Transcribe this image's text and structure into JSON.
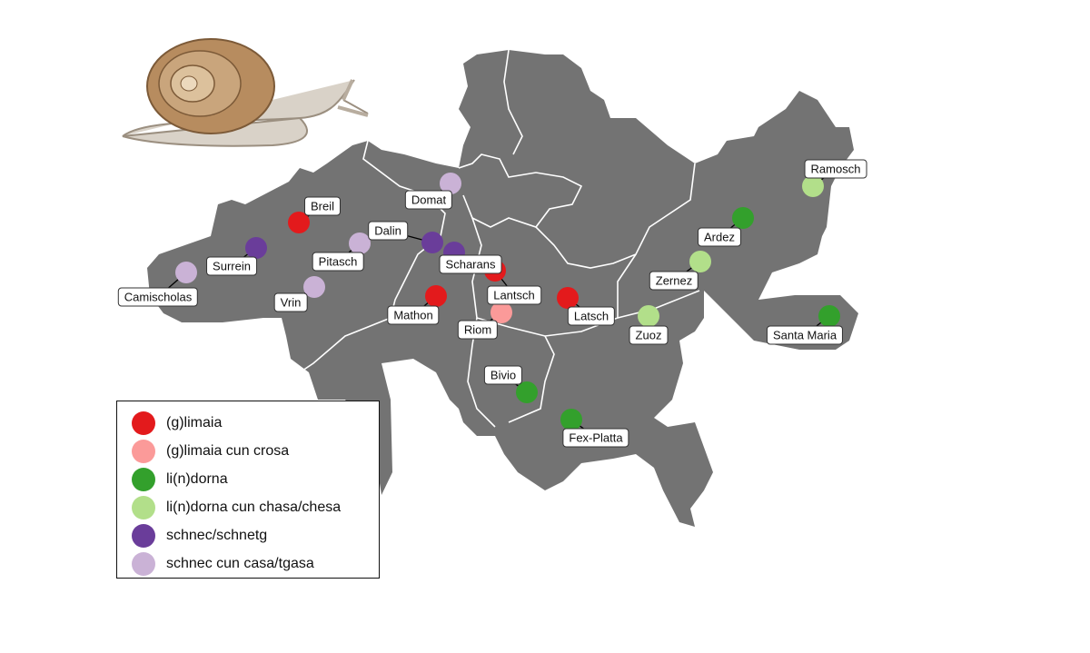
{
  "categories": [
    {
      "label": "(g)limaia",
      "color": "#e31a1c"
    },
    {
      "label": "(g)limaia cun crosa",
      "color": "#fb9a99"
    },
    {
      "label": "li(n)dorna",
      "color": "#33a02c"
    },
    {
      "label": "li(n)dorna cun chasa/chesa",
      "color": "#b2df8a"
    },
    {
      "label": "schnec/schnetg",
      "color": "#6a3d9a"
    },
    {
      "label": "schnec cun casa/tgasa",
      "color": "#cab2d6"
    }
  ],
  "places": [
    {
      "name": "Breil",
      "category": 0
    },
    {
      "name": "Surrein",
      "category": 4
    },
    {
      "name": "Camischolas",
      "category": 5
    },
    {
      "name": "Pitasch",
      "category": 5
    },
    {
      "name": "Vrin",
      "category": 5
    },
    {
      "name": "Domat",
      "category": 5
    },
    {
      "name": "Dalin",
      "category": 4
    },
    {
      "name": "Scharans",
      "category": 4
    },
    {
      "name": "Lantsch",
      "category": 0
    },
    {
      "name": "Mathon",
      "category": 0
    },
    {
      "name": "Riom",
      "category": 1
    },
    {
      "name": "Latsch",
      "category": 0
    },
    {
      "name": "Bivio",
      "category": 2
    },
    {
      "name": "Fex-Platta",
      "category": 2
    },
    {
      "name": "Zuoz",
      "category": 3
    },
    {
      "name": "Zernez",
      "category": 3
    },
    {
      "name": "Ardez",
      "category": 2
    },
    {
      "name": "Ramosch",
      "category": 3
    },
    {
      "name": "Santa Maria",
      "category": 2
    }
  ],
  "map_fill": "#737373",
  "illustration": "snail"
}
